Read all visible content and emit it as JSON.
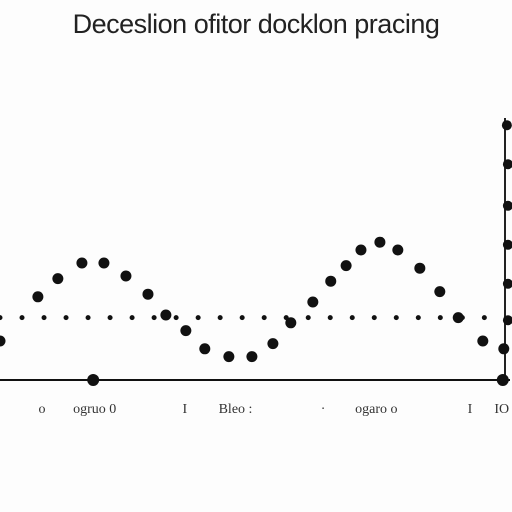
{
  "chart_data": {
    "type": "scatter",
    "title": "Deceslion ofitor docklon pracing",
    "xlim": [
      0,
      100
    ],
    "ylim": [
      0,
      100
    ],
    "xticks": [
      {
        "value": 8.2,
        "label": "o"
      },
      {
        "value": 18.5,
        "label": "ogruo 0"
      },
      {
        "value": 36.1,
        "label": "I"
      },
      {
        "value": 46,
        "label": "Bleo :"
      },
      {
        "value": 63.1,
        "label": "·"
      },
      {
        "value": 73.5,
        "label": "ogaro o"
      },
      {
        "value": 91.8,
        "label": "I"
      },
      {
        "value": 98,
        "label": "IO"
      }
    ],
    "baseline": 0,
    "series": [
      {
        "color": "#111",
        "size": 5.5,
        "x": [
          0,
          7.4,
          11.3,
          16,
          20.3,
          24.6,
          28.9,
          32.4,
          36.3,
          40,
          44.7,
          49.2,
          53.3,
          56.8,
          61.1,
          64.6,
          67.6,
          70.5,
          74.2,
          77.7,
          82,
          85.9,
          89.5,
          94.3,
          98.4
        ],
        "values": [
          15,
          32,
          39,
          45,
          45,
          40,
          33,
          25,
          19,
          12,
          9,
          9,
          14,
          22,
          30,
          38,
          44,
          50,
          53,
          50,
          43,
          34,
          24,
          15,
          12
        ]
      },
      {
        "color": "#111",
        "size": 5,
        "x": [
          99,
          99.2,
          99.2,
          99.2,
          99.2,
          99.2
        ],
        "values": [
          98,
          83,
          67,
          52,
          37,
          23
        ]
      },
      {
        "color": "#111",
        "size": 2.5,
        "x": [
          0,
          4.3,
          8.6,
          12.9,
          17.2,
          21.5,
          25.8,
          30.1,
          34.4,
          38.7,
          43,
          47.3,
          51.6,
          55.9,
          60.2,
          64.5,
          68.8,
          73.1,
          77.4,
          81.7,
          86,
          90.3,
          94.6
        ],
        "values": [
          24,
          24,
          24,
          24,
          24,
          24,
          24,
          24,
          24,
          24,
          24,
          24,
          24,
          24,
          24,
          24,
          24,
          24,
          24,
          24,
          24,
          24,
          24
        ]
      },
      {
        "color": "#111",
        "size": 6,
        "x": [
          18.2,
          98.2
        ],
        "values": [
          0,
          0
        ]
      }
    ]
  }
}
